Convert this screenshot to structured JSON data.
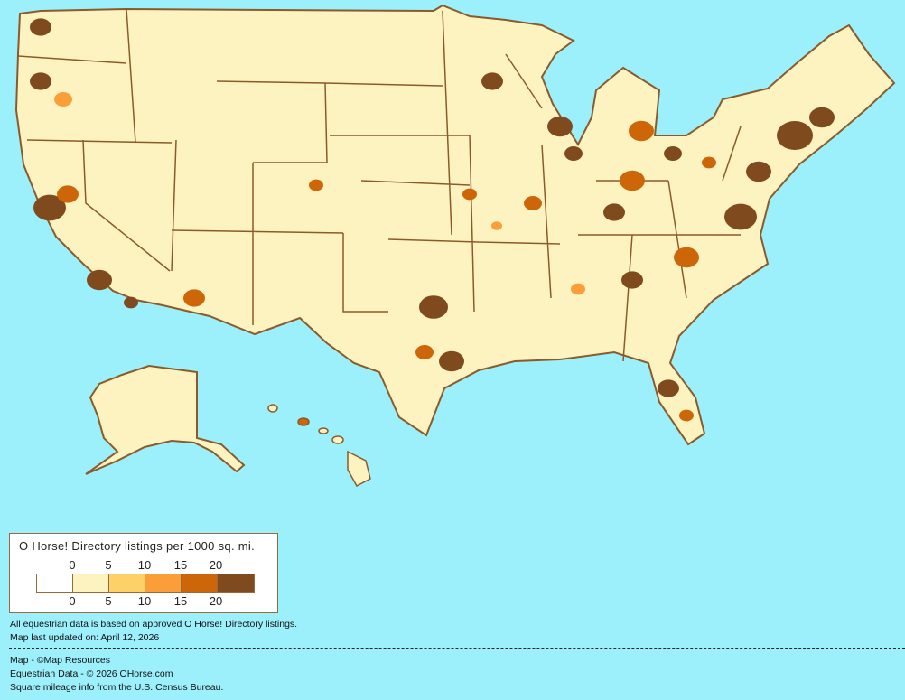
{
  "colors": {
    "ocean": "#9CF0FC",
    "border": "#8B5A2B",
    "bins": [
      "#FFFFFF",
      "#FDF3C0",
      "#FDD068",
      "#FB9E3A",
      "#CC6608",
      "#7F4A1E"
    ]
  },
  "legend": {
    "title": "O Horse! Directory listings per 1000 sq. mi.",
    "top_ticks": [
      "0",
      "5",
      "10",
      "15",
      "20"
    ],
    "bottom_ticks": [
      "0",
      "5",
      "10",
      "15",
      "20"
    ]
  },
  "notes": {
    "data_basis": "All equestrian data is based on approved O Horse! Directory listings.",
    "updated": "Map last updated on: April 12, 2026"
  },
  "credits": {
    "map": "Map - ©Map Resources",
    "data": "Equestrian Data - © 2026 OHorse.com",
    "census": "Square mileage info from the U.S. Census Bureau."
  }
}
